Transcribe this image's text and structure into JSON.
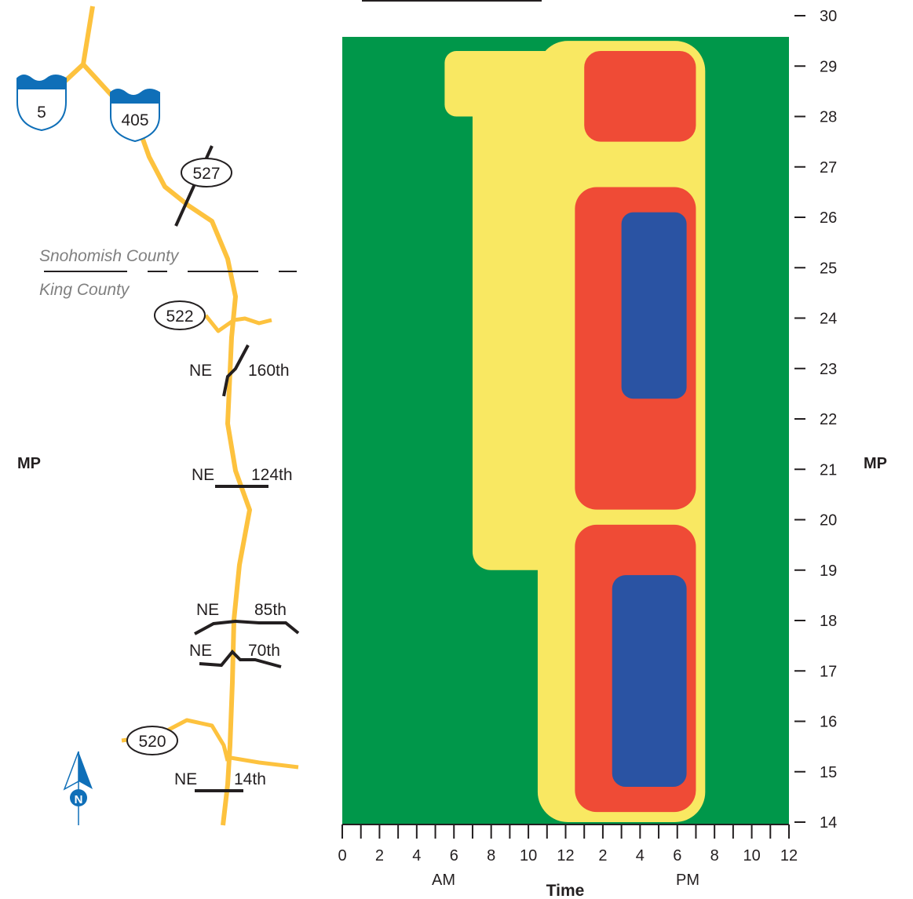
{
  "colors": {
    "free_flow": "#00974a",
    "moderate": "#f9e862",
    "heavy": "#ef4b36",
    "severe": "#2a53a3",
    "route": "#fdc23e",
    "road": "#231f20",
    "shield": "#0f6fb8",
    "county_text": "#808080"
  },
  "map": {
    "interstate_shields": [
      "5",
      "405"
    ],
    "state_routes": [
      "527",
      "522",
      "520"
    ],
    "county_north": "Snohomish County",
    "county_south": "King County",
    "streets": [
      {
        "prefix": "NE",
        "name": "160th"
      },
      {
        "prefix": "NE",
        "name": "124th"
      },
      {
        "prefix": "NE",
        "name": "85th"
      },
      {
        "prefix": "NE",
        "name": "70th"
      },
      {
        "prefix": "NE",
        "name": "14th"
      }
    ],
    "north_arrow": "N",
    "north_arrow_icon": "compass-north-icon"
  },
  "chart_data": {
    "type": "heatmap",
    "xlabel": "Time",
    "ylabel_left": "MP",
    "ylabel_right": "MP",
    "x_ticks": [
      "0",
      "2",
      "4",
      "6",
      "8",
      "10",
      "12",
      "2",
      "4",
      "6",
      "8",
      "10",
      "12"
    ],
    "x_period_labels": [
      "AM",
      "PM"
    ],
    "y_ticks": [
      14,
      15,
      16,
      17,
      18,
      19,
      20,
      21,
      22,
      23,
      24,
      25,
      26,
      27,
      28,
      29,
      30
    ],
    "xlim_hours": [
      0,
      24
    ],
    "ylim_milepost": [
      14,
      29.5
    ],
    "levels": [
      "free_flow",
      "moderate",
      "heavy",
      "severe"
    ],
    "congestion_regions": [
      {
        "level": "moderate",
        "start_hour": 5.5,
        "end_hour": 11.5,
        "mp_from": 28.0,
        "mp_to": 29.3
      },
      {
        "level": "moderate",
        "start_hour": 7.0,
        "end_hour": 12.5,
        "mp_from": 19.0,
        "mp_to": 29.0
      },
      {
        "level": "moderate",
        "start_hour": 10.5,
        "end_hour": 19.5,
        "mp_from": 14.0,
        "mp_to": 29.5
      },
      {
        "level": "heavy",
        "start_hour": 13.0,
        "end_hour": 19.0,
        "mp_from": 27.5,
        "mp_to": 29.3
      },
      {
        "level": "heavy",
        "start_hour": 12.5,
        "end_hour": 19.0,
        "mp_from": 20.2,
        "mp_to": 26.6
      },
      {
        "level": "heavy",
        "start_hour": 12.5,
        "end_hour": 19.0,
        "mp_from": 14.2,
        "mp_to": 19.9
      },
      {
        "level": "severe",
        "start_hour": 15.0,
        "end_hour": 18.5,
        "mp_from": 22.4,
        "mp_to": 26.1
      },
      {
        "level": "severe",
        "start_hour": 14.5,
        "end_hour": 18.5,
        "mp_from": 14.7,
        "mp_to": 18.9
      }
    ]
  }
}
